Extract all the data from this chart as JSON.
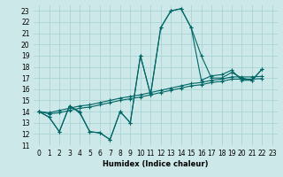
{
  "xlabel": "Humidex (Indice chaleur)",
  "bg_color": "#cce8e8",
  "grid_color": "#aad4d4",
  "line_color": "#006666",
  "xlim": [
    -0.5,
    23.5
  ],
  "ylim": [
    11,
    23.5
  ],
  "xticks": [
    0,
    1,
    2,
    3,
    4,
    5,
    6,
    7,
    8,
    9,
    10,
    11,
    12,
    13,
    14,
    15,
    16,
    17,
    18,
    19,
    20,
    21,
    22,
    23
  ],
  "yticks": [
    11,
    12,
    13,
    14,
    15,
    16,
    17,
    18,
    19,
    20,
    21,
    22,
    23
  ],
  "series": [
    [
      14,
      13.5,
      12.2,
      14.5,
      14.0,
      12.2,
      12.1,
      11.5,
      14.0,
      13.0,
      19.0,
      15.5,
      21.5,
      23.0,
      23.2,
      21.5,
      19.0,
      17.0,
      17.0,
      17.5,
      17.0,
      16.8,
      17.8
    ],
    [
      14,
      13.5,
      12.2,
      14.5,
      13.9,
      12.2,
      12.1,
      11.5,
      14.0,
      13.0,
      19.0,
      15.5,
      21.5,
      23.0,
      23.2,
      21.5,
      16.8,
      17.2,
      17.3,
      17.7,
      16.8,
      16.8,
      17.8
    ],
    [
      14.0,
      13.9,
      14.1,
      14.3,
      14.5,
      14.6,
      14.8,
      15.0,
      15.2,
      15.35,
      15.5,
      15.7,
      15.9,
      16.1,
      16.3,
      16.5,
      16.6,
      16.8,
      16.9,
      17.1,
      17.1,
      17.1,
      17.15
    ],
    [
      14.0,
      13.8,
      13.9,
      14.1,
      14.3,
      14.4,
      14.6,
      14.8,
      15.0,
      15.15,
      15.3,
      15.5,
      15.7,
      15.9,
      16.1,
      16.3,
      16.4,
      16.6,
      16.7,
      16.9,
      16.9,
      16.9,
      16.95
    ]
  ]
}
